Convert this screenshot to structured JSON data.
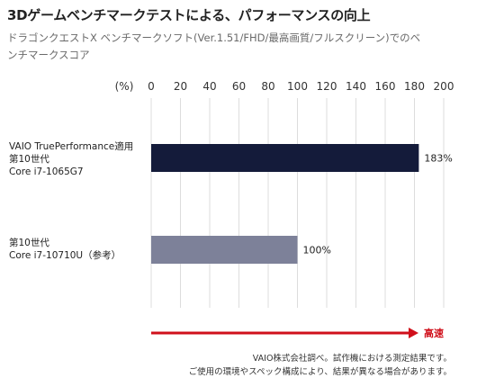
{
  "title": "3Dゲームベンチマークテストによる、パフォーマンスの向上",
  "subtitle": "ドラゴンクエストX ベンチマークソフト(Ver.1.51/FHD/最高画質/フルスクリーン)でのベンチマークスコア",
  "notes": {
    "line1": "VAIO株式会社調べ。試作機における測定結果です。",
    "line2": "ご使用の環境やスペック構成により、結果が異なる場合があります。"
  },
  "arrow_label": "高速",
  "colors": {
    "bar_primary": "#141b3a",
    "bar_secondary": "#7d8199",
    "arrow": "#d0101b",
    "grid": "#dddddd"
  },
  "chart_data": {
    "type": "bar",
    "orientation": "horizontal",
    "axis_unit_label": "(%)",
    "xlim": [
      0,
      200
    ],
    "ticks": [
      0,
      20,
      40,
      60,
      80,
      100,
      120,
      140,
      160,
      180,
      200
    ],
    "tick_labels": [
      "0",
      "20",
      "40",
      "60",
      "80",
      "100",
      "120",
      "140",
      "160",
      "180",
      "200"
    ],
    "grid": true,
    "categories": [
      [
        "VAIO TruePerformance適用",
        "第10世代",
        "Core i7-1065G7"
      ],
      [
        "第10世代",
        "Core i7-10710U（参考）"
      ]
    ],
    "values": [
      183,
      100
    ],
    "data_labels": [
      "183%",
      "100%"
    ]
  }
}
